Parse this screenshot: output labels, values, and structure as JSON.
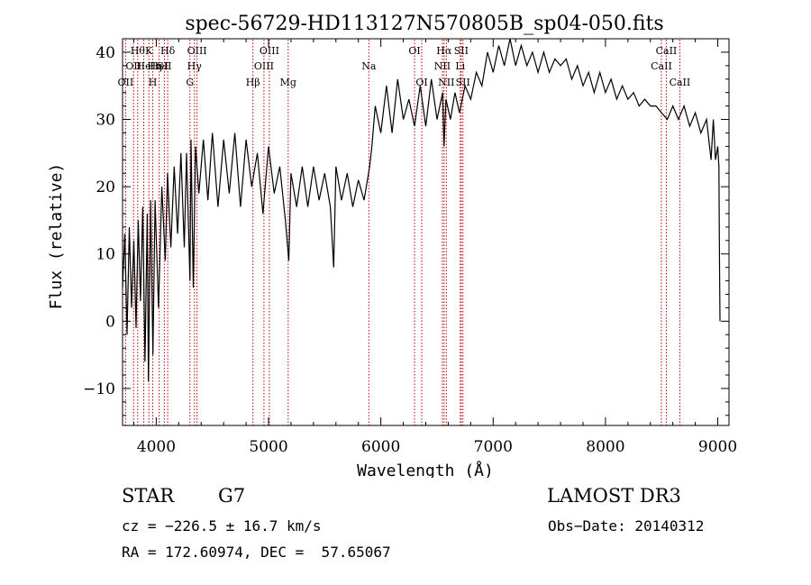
{
  "chart_data": {
    "type": "line",
    "title": "spec-56729-HD113127N570805B_sp04-050.fits",
    "xlabel": "Wavelength (Å)",
    "ylabel": "Flux (relative)",
    "xlim": [
      3700,
      9100
    ],
    "ylim": [
      -15.5,
      42
    ],
    "xticks": [
      4000,
      5000,
      6000,
      7000,
      8000,
      9000
    ],
    "yticks": [
      -10,
      0,
      10,
      20,
      30,
      40
    ],
    "x_tick_labels": [
      "4000",
      "5000",
      "6000",
      "7000",
      "8000",
      "9000"
    ],
    "y_tick_labels": [
      "−10",
      "0",
      "10",
      "20",
      "30",
      "40"
    ],
    "spectrum": {
      "name": "flux",
      "color": "#000000",
      "points": [
        [
          3700,
          5
        ],
        [
          3720,
          13
        ],
        [
          3740,
          -2
        ],
        [
          3760,
          14
        ],
        [
          3780,
          2
        ],
        [
          3800,
          12
        ],
        [
          3820,
          -1
        ],
        [
          3840,
          15
        ],
        [
          3860,
          3
        ],
        [
          3880,
          17
        ],
        [
          3900,
          -6
        ],
        [
          3920,
          16
        ],
        [
          3930,
          -9
        ],
        [
          3950,
          18
        ],
        [
          3970,
          -5
        ],
        [
          3990,
          18
        ],
        [
          4020,
          2
        ],
        [
          4050,
          20
        ],
        [
          4080,
          9
        ],
        [
          4100,
          22
        ],
        [
          4130,
          11
        ],
        [
          4160,
          23
        ],
        [
          4190,
          13
        ],
        [
          4220,
          25
        ],
        [
          4250,
          11
        ],
        [
          4270,
          25
        ],
        [
          4300,
          6
        ],
        [
          4310,
          27
        ],
        [
          4330,
          5
        ],
        [
          4350,
          26
        ],
        [
          4380,
          19
        ],
        [
          4420,
          27
        ],
        [
          4460,
          18
        ],
        [
          4500,
          28
        ],
        [
          4550,
          17
        ],
        [
          4600,
          27
        ],
        [
          4650,
          19
        ],
        [
          4700,
          28
        ],
        [
          4750,
          17
        ],
        [
          4800,
          27
        ],
        [
          4850,
          20
        ],
        [
          4900,
          25
        ],
        [
          4950,
          16
        ],
        [
          5000,
          26
        ],
        [
          5050,
          19
        ],
        [
          5100,
          23
        ],
        [
          5150,
          15
        ],
        [
          5180,
          9
        ],
        [
          5200,
          22
        ],
        [
          5250,
          17
        ],
        [
          5300,
          23
        ],
        [
          5350,
          17
        ],
        [
          5400,
          23
        ],
        [
          5450,
          18
        ],
        [
          5500,
          22
        ],
        [
          5550,
          17
        ],
        [
          5580,
          8
        ],
        [
          5600,
          23
        ],
        [
          5650,
          18
        ],
        [
          5700,
          22
        ],
        [
          5750,
          17
        ],
        [
          5800,
          21
        ],
        [
          5850,
          18
        ],
        [
          5900,
          23
        ],
        [
          5920,
          26
        ],
        [
          5950,
          32
        ],
        [
          6000,
          28
        ],
        [
          6050,
          35
        ],
        [
          6100,
          28
        ],
        [
          6150,
          36
        ],
        [
          6200,
          30
        ],
        [
          6250,
          33
        ],
        [
          6300,
          29
        ],
        [
          6350,
          35
        ],
        [
          6400,
          29
        ],
        [
          6450,
          36
        ],
        [
          6500,
          30
        ],
        [
          6550,
          34
        ],
        [
          6563,
          26
        ],
        [
          6580,
          33
        ],
        [
          6620,
          30
        ],
        [
          6660,
          34
        ],
        [
          6700,
          31
        ],
        [
          6750,
          35
        ],
        [
          6800,
          33
        ],
        [
          6850,
          37
        ],
        [
          6900,
          35
        ],
        [
          6950,
          40
        ],
        [
          7000,
          37
        ],
        [
          7050,
          41
        ],
        [
          7100,
          38
        ],
        [
          7150,
          42
        ],
        [
          7200,
          38
        ],
        [
          7250,
          41
        ],
        [
          7300,
          38
        ],
        [
          7350,
          40
        ],
        [
          7400,
          37
        ],
        [
          7450,
          40
        ],
        [
          7500,
          37
        ],
        [
          7550,
          39
        ],
        [
          7600,
          38
        ],
        [
          7650,
          39
        ],
        [
          7700,
          36
        ],
        [
          7750,
          38
        ],
        [
          7800,
          35
        ],
        [
          7850,
          37
        ],
        [
          7900,
          34
        ],
        [
          7950,
          37
        ],
        [
          8000,
          34
        ],
        [
          8050,
          36
        ],
        [
          8100,
          33
        ],
        [
          8150,
          35
        ],
        [
          8200,
          33
        ],
        [
          8250,
          34
        ],
        [
          8300,
          32
        ],
        [
          8350,
          33
        ],
        [
          8400,
          32
        ],
        [
          8450,
          32
        ],
        [
          8500,
          31
        ],
        [
          8550,
          30
        ],
        [
          8600,
          32
        ],
        [
          8650,
          30
        ],
        [
          8700,
          32
        ],
        [
          8750,
          29
        ],
        [
          8800,
          31
        ],
        [
          8850,
          28
        ],
        [
          8900,
          30
        ],
        [
          8940,
          24
        ],
        [
          8960,
          30
        ],
        [
          8980,
          24
        ],
        [
          9000,
          26
        ],
        [
          9010,
          23
        ],
        [
          9015,
          10
        ],
        [
          9020,
          0
        ]
      ]
    },
    "line_markers": [
      {
        "wavelength": 3727,
        "labels": [
          "OII"
        ],
        "row": 3
      },
      {
        "wavelength": 3798,
        "labels": [
          "OII"
        ],
        "row": 2
      },
      {
        "wavelength": 3835,
        "labels": [
          "Hθ"
        ],
        "row": 1
      },
      {
        "wavelength": 3889,
        "labels": [
          "He",
          "Hη"
        ],
        "row": 2
      },
      {
        "wavelength": 3934,
        "labels": [
          "K"
        ],
        "row": 1
      },
      {
        "wavelength": 3969,
        "labels": [
          "H"
        ],
        "row": 3
      },
      {
        "wavelength": 4026,
        "labels": [
          "HeI"
        ],
        "row": 2
      },
      {
        "wavelength": 4072,
        "labels": [
          "SII"
        ],
        "row": 2
      },
      {
        "wavelength": 4102,
        "labels": [
          "Hδ"
        ],
        "row": 1
      },
      {
        "wavelength": 4300,
        "labels": [
          "G"
        ],
        "row": 3
      },
      {
        "wavelength": 4340,
        "labels": [
          "Hγ"
        ],
        "row": 2
      },
      {
        "wavelength": 4363,
        "labels": [
          "OIII"
        ],
        "row": 1
      },
      {
        "wavelength": 4861,
        "labels": [
          "Hβ"
        ],
        "row": 3
      },
      {
        "wavelength": 4959,
        "labels": [
          "OIII"
        ],
        "row": 2
      },
      {
        "wavelength": 5007,
        "labels": [
          "OIII"
        ],
        "row": 1
      },
      {
        "wavelength": 5175,
        "labels": [
          "Mg"
        ],
        "row": 3
      },
      {
        "wavelength": 5893,
        "labels": [
          "Na"
        ],
        "row": 2
      },
      {
        "wavelength": 6300,
        "labels": [
          "OI"
        ],
        "row": 1
      },
      {
        "wavelength": 6364,
        "labels": [
          "OI"
        ],
        "row": 3
      },
      {
        "wavelength": 6548,
        "labels": [
          "NII"
        ],
        "row": 2
      },
      {
        "wavelength": 6563,
        "labels": [
          "Hα"
        ],
        "row": 1
      },
      {
        "wavelength": 6583,
        "labels": [
          "NII"
        ],
        "row": 3
      },
      {
        "wavelength": 6707,
        "labels": [
          "Li"
        ],
        "row": 2
      },
      {
        "wavelength": 6716,
        "labels": [
          "SII"
        ],
        "row": 1
      },
      {
        "wavelength": 6731,
        "labels": [
          "SII"
        ],
        "row": 3
      },
      {
        "wavelength": 8498,
        "labels": [
          "CaII"
        ],
        "row": 2
      },
      {
        "wavelength": 8542,
        "labels": [
          "CaII"
        ],
        "row": 1
      },
      {
        "wavelength": 8662,
        "labels": [
          "CaII"
        ],
        "row": 3
      }
    ],
    "marker_color": "#c00000"
  },
  "info": {
    "class": "STAR",
    "subclass": "G7",
    "survey": "LAMOST DR3",
    "cz_line": "cz = −226.5 ± 16.7 km/s",
    "obs_date_line": "Obs−Date: 20140312",
    "radec_line": "RA = 172.60974, DEC =  57.65067"
  }
}
